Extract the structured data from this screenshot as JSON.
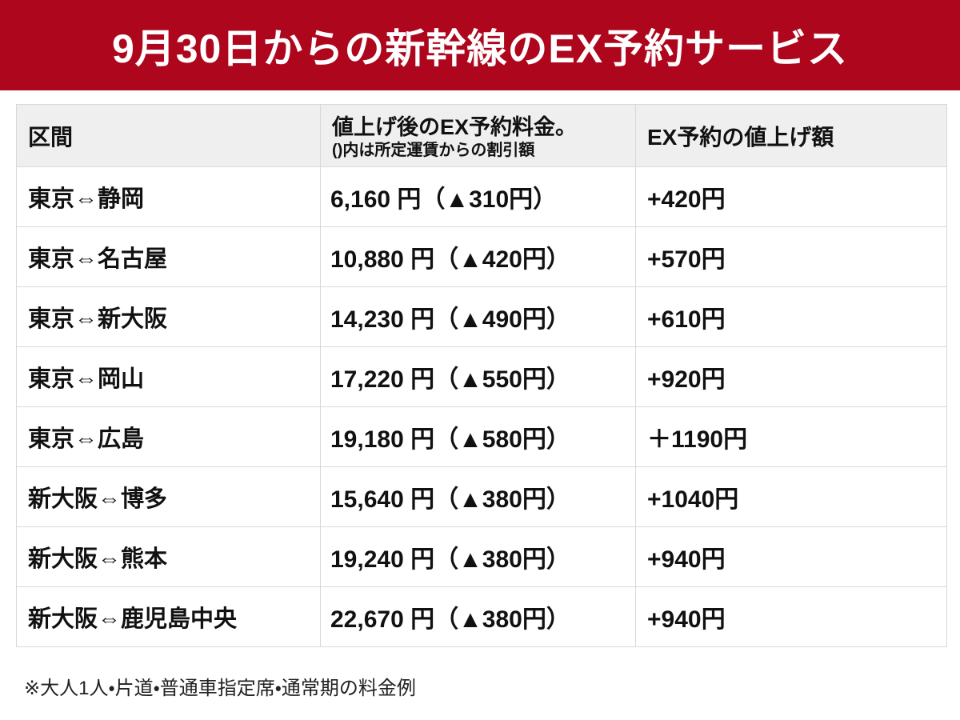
{
  "banner": {
    "title": "9月30日からの新幹線のEX予約サービス"
  },
  "colors": {
    "banner_red": "#ae061c",
    "header_gray": "#efefef",
    "border": "#d8d8d8",
    "text": "#111111"
  },
  "table": {
    "headers": {
      "route": "区間",
      "fare_line1": "値上げ後のEX予約料金。",
      "fare_line2": "()内は所定運賃からの割引額",
      "increase": "EX予約の値上げ額"
    },
    "rows": [
      {
        "route": "東京⇔静岡",
        "fare": "6,160 円（▲310円）",
        "increase": "+420円"
      },
      {
        "route": "東京⇔名古屋",
        "fare": "10,880 円（▲420円）",
        "increase": "+570円"
      },
      {
        "route": "東京⇔新大阪",
        "fare": "14,230 円（▲490円）",
        "increase": "+610円"
      },
      {
        "route": "東京⇔岡山",
        "fare": "17,220 円（▲550円）",
        "increase": "+920円"
      },
      {
        "route": "東京⇔広島",
        "fare": "19,180 円（▲580円）",
        "increase": "＋1190円"
      },
      {
        "route": "新大阪⇔博多",
        "fare": "15,640 円（▲380円）",
        "increase": "+1040円"
      },
      {
        "route": "新大阪⇔熊本",
        "fare": "19,240 円（▲380円）",
        "increase": "+940円"
      },
      {
        "route": "新大阪⇔鹿児島中央",
        "fare": "22,670 円（▲380円）",
        "increase": "+940円"
      }
    ]
  },
  "footnote": "※大人1人・片道・普通車指定席・通常期の料金例",
  "chart_data": {
    "type": "table",
    "title": "9月30日からの新幹線のEX予約サービス",
    "columns": [
      "区間",
      "値上げ後のEX予約料金。()内は所定運賃からの割引額",
      "EX予約の値上げ額"
    ],
    "rows": [
      [
        "東京⇔静岡",
        "6,160 円（▲310円）",
        "+420円"
      ],
      [
        "東京⇔名古屋",
        "10,880 円（▲420円）",
        "+570円"
      ],
      [
        "東京⇔新大阪",
        "14,230 円（▲490円）",
        "+610円"
      ],
      [
        "東京⇔岡山",
        "17,220 円（▲550円）",
        "+920円"
      ],
      [
        "東京⇔広島",
        "19,180 円（▲580円）",
        "＋1190円"
      ],
      [
        "新大阪⇔博多",
        "15,640 円（▲380円）",
        "+1040円"
      ],
      [
        "新大阪⇔熊本",
        "19,240 円（▲380円）",
        "+940円"
      ],
      [
        "新大阪⇔鹿児島中央",
        "22,670 円（▲380円）",
        "+940円"
      ]
    ],
    "footnote": "※大人1人・片道・普通車指定席・通常期の料金例",
    "legend_position": "none",
    "grid": true
  }
}
